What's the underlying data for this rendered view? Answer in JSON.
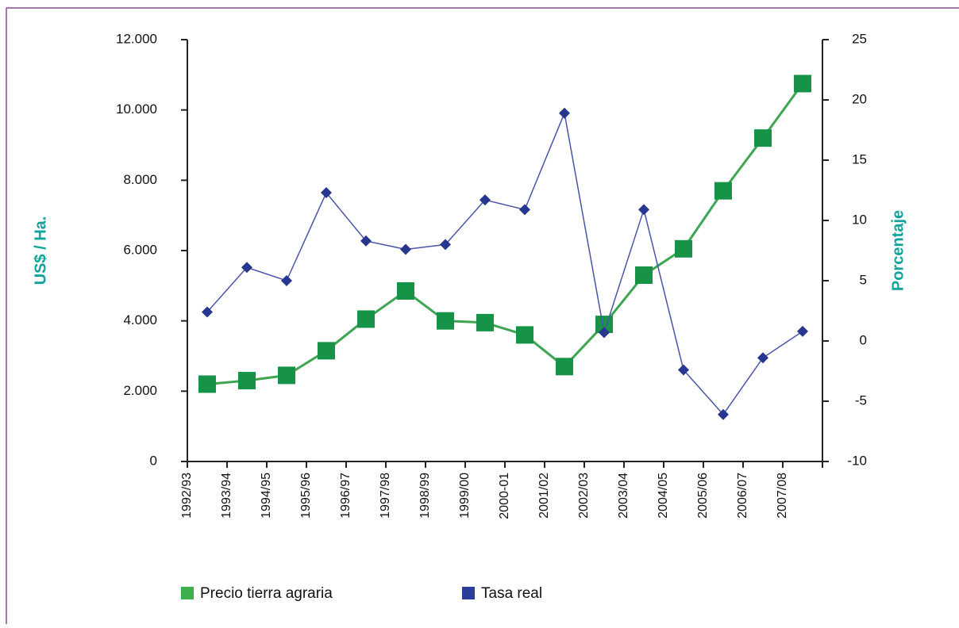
{
  "chart_data": {
    "type": "line",
    "categories": [
      "1992/93",
      "1993/94",
      "1994/95",
      "1995/96",
      "1996/97",
      "1997/98",
      "1998/99",
      "1999/00",
      "2000-01",
      "2001/02",
      "2002/03",
      "2003/04",
      "2004/05",
      "2005/06",
      "2006/07",
      "2007/08"
    ],
    "series": [
      {
        "name": "Precio tierra agraria",
        "color": "#169346",
        "axis": "y",
        "values": [
          2200,
          2300,
          2450,
          3150,
          4050,
          4850,
          4000,
          3950,
          3600,
          2700,
          3900,
          5300,
          6050,
          7700,
          9200,
          10750
        ]
      },
      {
        "name": "Tasa real",
        "color": "#27378f",
        "axis": "y2",
        "values": [
          2.4,
          6.1,
          5.0,
          12.3,
          8.3,
          7.6,
          8.0,
          11.7,
          10.9,
          18.9,
          0.7,
          10.9,
          -2.4,
          -6.1,
          -1.4,
          0.8
        ]
      }
    ],
    "ylabel": "US$ / Ha.",
    "y2label": "Porcentaje",
    "ylim": [
      0,
      12000
    ],
    "yticks": [
      0,
      {
        "value": 2000,
        "label": "2.000"
      },
      {
        "value": 4000,
        "label": "4.000"
      },
      {
        "value": 6000,
        "label": "6.000"
      },
      {
        "value": 8000,
        "label": "8.000"
      },
      {
        "value": 10000,
        "label": "10.000"
      },
      {
        "value": 12000,
        "label": "12.000"
      }
    ],
    "y2lim": [
      -10,
      25
    ],
    "y2ticks": [
      -10,
      -5,
      0,
      5,
      10,
      15,
      20,
      25
    ],
    "legend": "bottom"
  }
}
